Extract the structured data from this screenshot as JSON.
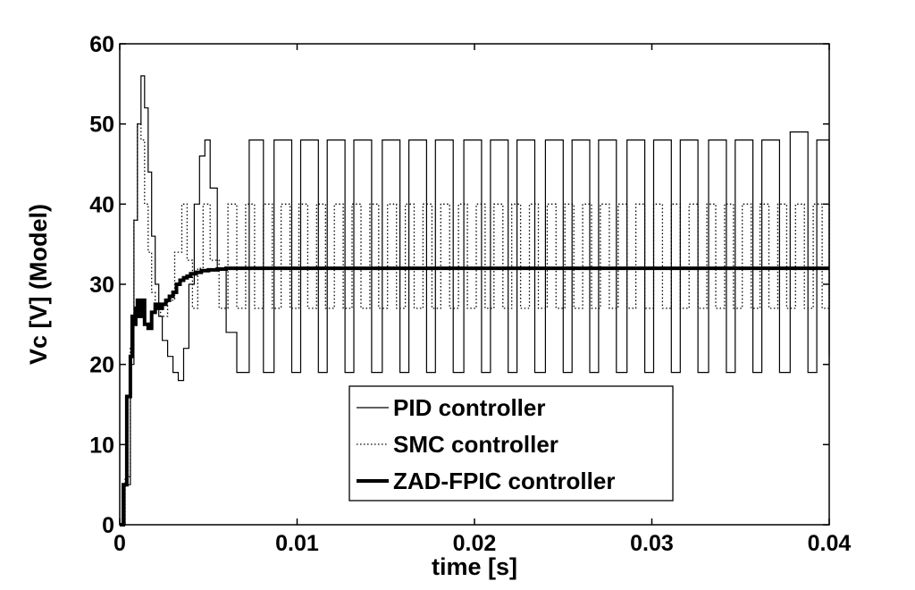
{
  "chart_data": {
    "type": "line",
    "title": "",
    "xlabel": "time [s]",
    "ylabel": "Vc [V] (Model)",
    "xlim": [
      0,
      0.04
    ],
    "ylim": [
      0,
      60
    ],
    "xticks": [
      0,
      0.01,
      0.02,
      0.03,
      0.04
    ],
    "xtick_labels": [
      "0",
      "0.01",
      "0.02",
      "0.03",
      "0.04"
    ],
    "yticks": [
      0,
      10,
      20,
      30,
      40,
      50,
      60
    ],
    "ytick_labels": [
      "0",
      "10",
      "20",
      "30",
      "40",
      "50",
      "60"
    ],
    "grid": false,
    "legend_position": "lower-center",
    "series": [
      {
        "name": "PID controller",
        "style": "thin-solid",
        "color": "#000000",
        "x": [
          0,
          0.0003,
          0.0006,
          0.0008,
          0.001,
          0.0012,
          0.0014,
          0.0016,
          0.0018,
          0.002,
          0.0022,
          0.0024,
          0.0027,
          0.003,
          0.0033,
          0.0036,
          0.0039,
          0.0042,
          0.0045,
          0.0048,
          0.0051,
          0.0055,
          0.006,
          0.0066,
          0.0073,
          0.0081,
          0.0087,
          0.0097,
          0.0102,
          0.0112,
          0.0117,
          0.0127,
          0.0132,
          0.0142,
          0.0148,
          0.0158,
          0.0163,
          0.0173,
          0.0178,
          0.0188,
          0.0194,
          0.0204,
          0.0209,
          0.0219,
          0.0224,
          0.0234,
          0.024,
          0.025,
          0.0255,
          0.0265,
          0.027,
          0.028,
          0.0286,
          0.0296,
          0.0301,
          0.0311,
          0.0316,
          0.0326,
          0.0332,
          0.0342,
          0.0347,
          0.0357,
          0.0362,
          0.0372,
          0.0378,
          0.0388,
          0.0393,
          0.04
        ],
        "y": [
          0,
          5,
          20,
          38,
          50,
          56,
          52,
          44,
          36,
          30,
          26,
          23,
          21,
          19,
          18,
          22,
          30,
          40,
          46,
          48,
          42,
          32,
          24,
          19,
          48,
          19,
          48,
          19,
          48,
          19,
          48,
          19,
          48,
          19,
          48,
          19,
          48,
          19,
          48,
          19,
          48,
          19,
          48,
          19,
          48,
          19,
          48,
          19,
          48,
          19,
          48,
          19,
          48,
          19,
          48,
          19,
          48,
          19,
          48,
          19,
          48,
          19,
          48,
          19,
          49,
          19,
          48,
          21
        ]
      },
      {
        "name": "SMC controller",
        "style": "dotted",
        "color": "#000000",
        "x": [
          0,
          0.0003,
          0.0006,
          0.0008,
          0.001,
          0.0012,
          0.0014,
          0.0016,
          0.0018,
          0.002,
          0.0023,
          0.0027,
          0.0031,
          0.0035,
          0.0038,
          0.0041,
          0.0044,
          0.0047,
          0.0051,
          0.0056,
          0.0061,
          0.0066,
          0.0071,
          0.0076,
          0.0081,
          0.0086,
          0.0091,
          0.0096,
          0.0101,
          0.0106,
          0.0111,
          0.0116,
          0.0121,
          0.0126,
          0.0131,
          0.0136,
          0.0141,
          0.0146,
          0.0151,
          0.0156,
          0.0161,
          0.0166,
          0.0171,
          0.0176,
          0.0181,
          0.0186,
          0.0191,
          0.0196,
          0.0201,
          0.0206,
          0.0211,
          0.0216,
          0.0221,
          0.0226,
          0.0231,
          0.0236,
          0.0241,
          0.0246,
          0.0251,
          0.0256,
          0.0261,
          0.0266,
          0.0271,
          0.0276,
          0.0281,
          0.0286,
          0.0291,
          0.0296,
          0.0301,
          0.0306,
          0.0311,
          0.0316,
          0.0321,
          0.0326,
          0.0331,
          0.0336,
          0.0341,
          0.0346,
          0.0351,
          0.0356,
          0.0361,
          0.0366,
          0.0371,
          0.0376,
          0.0381,
          0.0386,
          0.0391,
          0.0396,
          0.04
        ],
        "y": [
          0,
          6,
          22,
          38,
          50,
          48,
          40,
          34,
          29,
          27,
          26,
          28,
          34,
          40,
          33,
          27,
          32,
          40,
          33,
          27,
          40,
          27,
          40,
          27,
          40,
          27,
          40,
          27,
          40,
          27,
          40,
          27,
          40,
          27,
          40,
          27,
          40,
          27,
          40,
          27,
          40,
          27,
          40,
          27,
          40,
          27,
          40,
          27,
          40,
          27,
          40,
          27,
          40,
          27,
          40,
          27,
          40,
          27,
          40,
          27,
          40,
          27,
          40,
          27,
          40,
          27,
          40,
          27,
          40,
          27,
          40,
          27,
          40,
          27,
          40,
          27,
          40,
          27,
          40,
          27,
          40,
          27,
          40,
          27,
          40,
          27,
          40,
          27,
          40
        ]
      },
      {
        "name": "ZAD-FPIC controller",
        "style": "thick-solid",
        "color": "#000000",
        "x": [
          0,
          0.0002,
          0.0004,
          0.0006,
          0.0007,
          0.0008,
          0.0009,
          0.001,
          0.0011,
          0.0012,
          0.0014,
          0.0016,
          0.0018,
          0.002,
          0.0022,
          0.0024,
          0.0026,
          0.0028,
          0.003,
          0.0032,
          0.0034,
          0.0036,
          0.0038,
          0.004,
          0.0043,
          0.0046,
          0.005,
          0.0055,
          0.006,
          0.0065,
          0.007,
          0.04
        ],
        "y": [
          0,
          5,
          16,
          21,
          26,
          25,
          27,
          28,
          26,
          28,
          25,
          24.5,
          26.5,
          27.5,
          27,
          27.5,
          28,
          28.5,
          29,
          30,
          30.5,
          30.8,
          31,
          31.3,
          31.5,
          31.7,
          31.8,
          31.9,
          32,
          32,
          32,
          32
        ]
      }
    ]
  }
}
